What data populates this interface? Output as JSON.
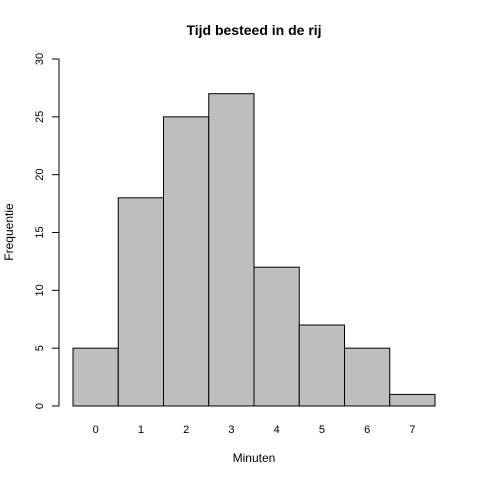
{
  "chart_data": {
    "type": "bar",
    "title": "Tijd besteed in de rij",
    "xlabel": "Minuten",
    "ylabel": "Frequentie",
    "categories": [
      "0",
      "1",
      "2",
      "3",
      "4",
      "5",
      "6",
      "7"
    ],
    "values": [
      5,
      18,
      25,
      27,
      12,
      7,
      5,
      1
    ],
    "ylim": [
      0,
      30
    ],
    "yticks": [
      0,
      5,
      10,
      15,
      20,
      25,
      30
    ],
    "bar_color": "#bebebe",
    "grid": false,
    "legend": "none"
  }
}
